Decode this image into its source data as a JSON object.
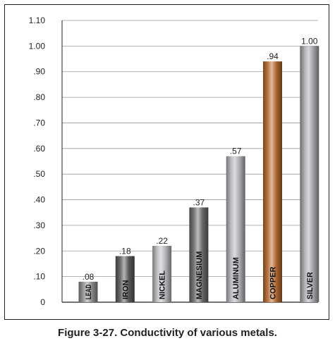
{
  "caption": "Figure 3-27. Conductivity of various metals.",
  "chart_data": {
    "type": "bar",
    "title": "",
    "xlabel": "",
    "ylabel": "",
    "ylim": [
      0,
      1.1
    ],
    "yticks": [
      {
        "value": 0,
        "label": "0"
      },
      {
        "value": 0.1,
        "label": ".10"
      },
      {
        "value": 0.2,
        "label": ".20"
      },
      {
        "value": 0.3,
        "label": ".30"
      },
      {
        "value": 0.4,
        "label": ".40"
      },
      {
        "value": 0.5,
        "label": ".50"
      },
      {
        "value": 0.6,
        "label": ".60"
      },
      {
        "value": 0.7,
        "label": ".70"
      },
      {
        "value": 0.8,
        "label": ".80"
      },
      {
        "value": 0.9,
        "label": ".90"
      },
      {
        "value": 1.0,
        "label": "1.00"
      },
      {
        "value": 1.1,
        "label": "1.10"
      }
    ],
    "grid": true,
    "bars": [
      {
        "category": "LEAD",
        "value": 0.08,
        "value_label": ".08",
        "color": "#8f8f8f"
      },
      {
        "category": "IRON",
        "value": 0.18,
        "value_label": ".18",
        "color": "#5a5a5a"
      },
      {
        "category": "NICKEL",
        "value": 0.22,
        "value_label": ".22",
        "color": "#b9b9bd"
      },
      {
        "category": "MAGNESIUM",
        "value": 0.37,
        "value_label": ".37",
        "color": "#6a6a6a"
      },
      {
        "category": "ALUMINUM",
        "value": 0.57,
        "value_label": ".57",
        "color": "#b2b2b8"
      },
      {
        "category": "COPPER",
        "value": 0.94,
        "value_label": ".94",
        "color": "#b5682d"
      },
      {
        "category": "SILVER",
        "value": 1.0,
        "value_label": "1.00",
        "color": "#a8a8ad"
      }
    ]
  }
}
